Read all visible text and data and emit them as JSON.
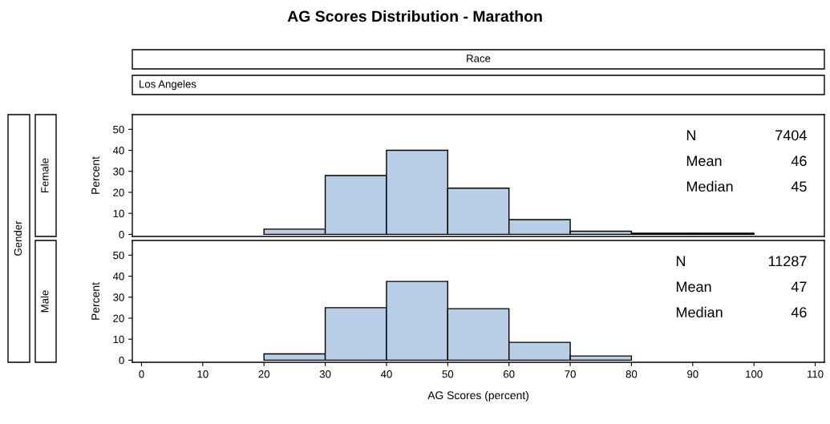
{
  "chart_data": [
    {
      "type": "histogram",
      "title": "AG Scores Distribution - Marathon",
      "ylabel": "Percent",
      "bins": [
        20,
        30,
        40,
        50,
        60,
        70,
        80,
        90,
        100
      ],
      "values": [
        2.5,
        28,
        40,
        22,
        7,
        1.5,
        0.5,
        0.5
      ],
      "color": "#b8cde6",
      "xlim": [
        -1.5,
        111.5
      ],
      "xticks": [
        0,
        10,
        20,
        30,
        40,
        50,
        60,
        70,
        80,
        90,
        100,
        110
      ],
      "ylim": [
        -1,
        57
      ],
      "yticks": [
        0,
        10,
        20,
        30,
        40,
        50
      ],
      "tick_labels": "y",
      "grid": false,
      "annotations": [
        "Race",
        "Los Angeles",
        "Gender",
        "Female",
        "N",
        "7404",
        "Mean",
        "46",
        "Median",
        "45"
      ]
    },
    {
      "type": "histogram",
      "xlabel": "AG Scores (percent)",
      "ylabel": "Percent",
      "bins": [
        20,
        30,
        40,
        50,
        60,
        70,
        80
      ],
      "values": [
        3,
        25,
        37.5,
        24.5,
        8.5,
        2
      ],
      "color": "#b8cde6",
      "xlim": [
        -1.5,
        111.5
      ],
      "xticks": [
        0,
        10,
        20,
        30,
        40,
        50,
        60,
        70,
        80,
        90,
        100,
        110
      ],
      "ylim": [
        -1,
        57
      ],
      "yticks": [
        0,
        10,
        20,
        30,
        40,
        50
      ],
      "grid": false,
      "annotations": [
        "Male",
        "N",
        "11287",
        "Mean",
        "47",
        "Median",
        "46"
      ]
    }
  ]
}
